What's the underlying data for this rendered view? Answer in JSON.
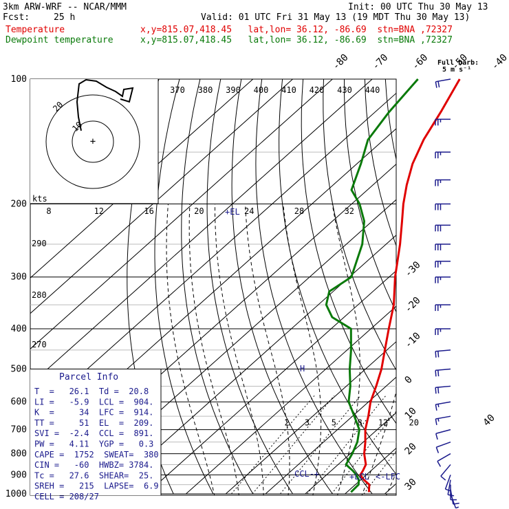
{
  "header": {
    "model": "3km ARW-WRF -- NCAR/MMM",
    "init": "Init: 00 UTC Thu 30 May 13",
    "fcst_label": "Fcst:",
    "fcst_value": "25 h",
    "valid": "Valid: 01 UTC Fri 31 May 13 (19 MDT Thu 30 May 13)",
    "temp_label": "Temperature",
    "dew_label": "Dewpoint temperature",
    "location": "x,y=815.07,418.45   lat,lon= 36.12, -86.69  stn=BNA ,72327"
  },
  "barb_legend": {
    "line1": "Full barb:",
    "line2": "5 m s⁻¹"
  },
  "parcel_info": {
    "title": "Parcel Info",
    "rows": [
      "T  =   26.1  Td =  20.8",
      "LI =   -5.9  LCL =  904.",
      "K  =     34  LFC =  914.",
      "TT =     51  EL  =  209.",
      "SVI =  -2.4  CCL =  891.",
      "PW =   4.11  YGP =   0.3",
      "CAPE =  1752  SWEAT=  380",
      "CIN =   -60  HWBZ= 3784.",
      "Tc =   27.6  SHEAR=  25.",
      "SREH =   215  LAPSE=  6.9",
      "CELL = 208/27"
    ]
  },
  "annotations": {
    "el": "EL",
    "ccl": "CCL",
    "lcl": "LCL",
    "lfc": "LFC",
    "kts": "kts"
  },
  "colors": {
    "temperature": "#e00000",
    "dewpoint": "#0a7a0a",
    "grid": "#000000",
    "text_blue": "#1a1a8c"
  },
  "chart_data": {
    "type": "skew-t log-p",
    "y_axis": {
      "scale": "log",
      "label_values": [
        100,
        200,
        300,
        400,
        500,
        600,
        700,
        800,
        900,
        1000
      ],
      "range": [
        100,
        1000
      ]
    },
    "isotherm_labels": [
      -80,
      -70,
      -60,
      -50,
      -40,
      -30,
      -20,
      -10,
      0,
      10,
      20,
      30,
      40
    ],
    "theta_labels": [
      370,
      380,
      390,
      400,
      410,
      420,
      430,
      440
    ],
    "theta_label_pressure": 130,
    "mixing_ratio_labels": [
      2,
      3,
      5,
      8,
      12,
      20
    ],
    "hodograph_speed_labels": [
      8,
      12,
      16,
      20,
      24,
      28,
      32
    ],
    "hodograph_ring_labels": [
      "10",
      "20"
    ],
    "pressure_side_labels": [
      290,
      280,
      270
    ],
    "series": [
      {
        "name": "Temperature",
        "points": [
          [
            990,
            25.5
          ],
          [
            950,
            23.5
          ],
          [
            925,
            20.8
          ],
          [
            900,
            18.5
          ],
          [
            880,
            18.0
          ],
          [
            850,
            17.0
          ],
          [
            800,
            13.5
          ],
          [
            750,
            10.5
          ],
          [
            700,
            7.0
          ],
          [
            650,
            4.0
          ],
          [
            600,
            0.5
          ],
          [
            550,
            -2.5
          ],
          [
            500,
            -6.0
          ],
          [
            450,
            -10.5
          ],
          [
            400,
            -15.5
          ],
          [
            350,
            -21.0
          ],
          [
            300,
            -28.5
          ],
          [
            250,
            -36.5
          ],
          [
            220,
            -42.5
          ],
          [
            200,
            -47.0
          ],
          [
            180,
            -51.5
          ],
          [
            160,
            -56.0
          ],
          [
            140,
            -60.0
          ],
          [
            120,
            -63.5
          ],
          [
            100,
            -68.0
          ]
        ]
      },
      {
        "name": "Dewpoint temperature",
        "points": [
          [
            990,
            21.0
          ],
          [
            950,
            20.8
          ],
          [
            925,
            19.5
          ],
          [
            900,
            17.5
          ],
          [
            880,
            15.5
          ],
          [
            850,
            12.0
          ],
          [
            800,
            10.5
          ],
          [
            750,
            8.5
          ],
          [
            700,
            5.5
          ],
          [
            650,
            0.5
          ],
          [
            600,
            -5.0
          ],
          [
            550,
            -9.0
          ],
          [
            500,
            -14.0
          ],
          [
            450,
            -19.0
          ],
          [
            400,
            -25.0
          ],
          [
            375,
            -33.0
          ],
          [
            350,
            -38.0
          ],
          [
            325,
            -41.0
          ],
          [
            300,
            -39.5
          ],
          [
            250,
            -46.0
          ],
          [
            220,
            -52.0
          ],
          [
            200,
            -58.0
          ],
          [
            185,
            -64.0
          ],
          [
            160,
            -69.0
          ],
          [
            140,
            -74.0
          ],
          [
            120,
            -76.5
          ],
          [
            100,
            -78.5
          ]
        ]
      }
    ],
    "wind_barbs": [
      {
        "p": 1000,
        "dir": 160,
        "spd": 8
      },
      {
        "p": 975,
        "dir": 170,
        "spd": 10
      },
      {
        "p": 950,
        "dir": 180,
        "spd": 10
      },
      {
        "p": 925,
        "dir": 190,
        "spd": 12
      },
      {
        "p": 900,
        "dir": 200,
        "spd": 12
      },
      {
        "p": 850,
        "dir": 220,
        "spd": 10
      },
      {
        "p": 800,
        "dir": 240,
        "spd": 10
      },
      {
        "p": 750,
        "dir": 250,
        "spd": 10
      },
      {
        "p": 700,
        "dir": 255,
        "spd": 12
      },
      {
        "p": 650,
        "dir": 260,
        "spd": 15
      },
      {
        "p": 600,
        "dir": 260,
        "spd": 18
      },
      {
        "p": 550,
        "dir": 265,
        "spd": 20
      },
      {
        "p": 500,
        "dir": 265,
        "spd": 20
      },
      {
        "p": 450,
        "dir": 265,
        "spd": 22
      },
      {
        "p": 400,
        "dir": 270,
        "spd": 25
      },
      {
        "p": 350,
        "dir": 270,
        "spd": 25
      },
      {
        "p": 300,
        "dir": 270,
        "spd": 28
      },
      {
        "p": 275,
        "dir": 270,
        "spd": 28
      },
      {
        "p": 250,
        "dir": 270,
        "spd": 30
      },
      {
        "p": 225,
        "dir": 270,
        "spd": 30
      },
      {
        "p": 200,
        "dir": 270,
        "spd": 30
      },
      {
        "p": 175,
        "dir": 270,
        "spd": 28
      },
      {
        "p": 150,
        "dir": 270,
        "spd": 28
      },
      {
        "p": 125,
        "dir": 270,
        "spd": 25
      },
      {
        "p": 100,
        "dir": 260,
        "spd": 20
      }
    ]
  }
}
